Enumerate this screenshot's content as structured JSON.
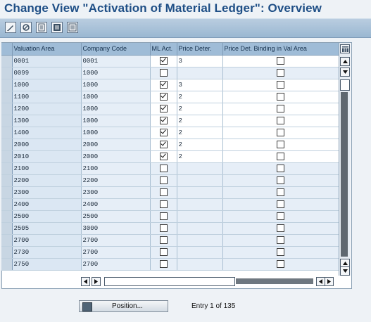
{
  "title": "Change View \"Activation of Material Ledger\": Overview",
  "toolbar": {
    "icons": [
      "edit-icon",
      "display-change-icon",
      "details-icon",
      "select-all-icon",
      "deselect-all-icon"
    ]
  },
  "table": {
    "columns": [
      "Valuation Area",
      "Company Code",
      "ML Act.",
      "Price Deter.",
      "Price Det. Binding in Val Area"
    ],
    "rows": [
      {
        "valuation_area": "0001",
        "company_code": "0001",
        "ml_act": true,
        "price_deter": "3",
        "binding": false
      },
      {
        "valuation_area": "0099",
        "company_code": "1000",
        "ml_act": false,
        "price_deter": "",
        "binding": false
      },
      {
        "valuation_area": "1000",
        "company_code": "1000",
        "ml_act": true,
        "price_deter": "3",
        "binding": false
      },
      {
        "valuation_area": "1100",
        "company_code": "1000",
        "ml_act": true,
        "price_deter": "2",
        "binding": false
      },
      {
        "valuation_area": "1200",
        "company_code": "1000",
        "ml_act": true,
        "price_deter": "2",
        "binding": false
      },
      {
        "valuation_area": "1300",
        "company_code": "1000",
        "ml_act": true,
        "price_deter": "2",
        "binding": false
      },
      {
        "valuation_area": "1400",
        "company_code": "1000",
        "ml_act": true,
        "price_deter": "2",
        "binding": false
      },
      {
        "valuation_area": "2000",
        "company_code": "2000",
        "ml_act": true,
        "price_deter": "2",
        "binding": false
      },
      {
        "valuation_area": "2010",
        "company_code": "2000",
        "ml_act": true,
        "price_deter": "2",
        "binding": false
      },
      {
        "valuation_area": "2100",
        "company_code": "2100",
        "ml_act": false,
        "price_deter": "",
        "binding": false
      },
      {
        "valuation_area": "2200",
        "company_code": "2200",
        "ml_act": false,
        "price_deter": "",
        "binding": false
      },
      {
        "valuation_area": "2300",
        "company_code": "2300",
        "ml_act": false,
        "price_deter": "",
        "binding": false
      },
      {
        "valuation_area": "2400",
        "company_code": "2400",
        "ml_act": false,
        "price_deter": "",
        "binding": false
      },
      {
        "valuation_area": "2500",
        "company_code": "2500",
        "ml_act": false,
        "price_deter": "",
        "binding": false
      },
      {
        "valuation_area": "2505",
        "company_code": "3000",
        "ml_act": false,
        "price_deter": "",
        "binding": false
      },
      {
        "valuation_area": "2700",
        "company_code": "2700",
        "ml_act": false,
        "price_deter": "",
        "binding": false
      },
      {
        "valuation_area": "2730",
        "company_code": "2700",
        "ml_act": false,
        "price_deter": "",
        "binding": false
      },
      {
        "valuation_area": "2750",
        "company_code": "2700",
        "ml_act": false,
        "price_deter": "",
        "binding": false
      }
    ]
  },
  "position_button": {
    "label": "Position..."
  },
  "entry_info": "Entry 1 of 135"
}
